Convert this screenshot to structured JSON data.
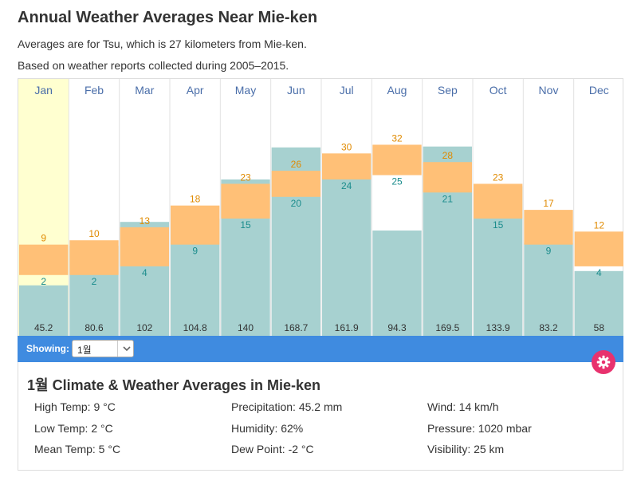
{
  "header": {
    "title": "Annual Weather Averages Near Mie-ken",
    "line1": "Averages are for Tsu, which is 27 kilometers from Mie-ken.",
    "line2": "Based on weather reports collected during 2005–2015."
  },
  "colors": {
    "temp_bar": "#ffc077",
    "precip_bar": "#a7d1d0",
    "highlight": "#ffffd0",
    "high_label": "#e08a00",
    "low_label": "#1a8c8c",
    "month_label": "#4a6ea9",
    "showbar": "#3f8be0",
    "gear": "#e8326e"
  },
  "chart_data": {
    "type": "bar",
    "title": "Annual Weather Averages Near Mie-ken",
    "categories": [
      "Jan",
      "Feb",
      "Mar",
      "Apr",
      "May",
      "Jun",
      "Jul",
      "Aug",
      "Sep",
      "Oct",
      "Nov",
      "Dec"
    ],
    "series": [
      {
        "name": "High Temp (°C)",
        "values": [
          9,
          10,
          13,
          18,
          23,
          26,
          30,
          32,
          28,
          23,
          17,
          12
        ]
      },
      {
        "name": "Low Temp (°C)",
        "values": [
          2,
          2,
          4,
          9,
          15,
          20,
          24,
          25,
          21,
          15,
          9,
          4
        ]
      },
      {
        "name": "Precipitation (mm)",
        "values": [
          45.2,
          80.6,
          102,
          104.8,
          140,
          168.7,
          161.9,
          94.3,
          169.5,
          133.9,
          83.2,
          58
        ]
      }
    ],
    "precip_labels": [
      "45.2",
      "80.6",
      "102",
      "104.8",
      "140",
      "168.7",
      "161.9",
      "94.3",
      "169.5",
      "133.9",
      "83.2",
      "58"
    ],
    "selected_month": "Jan",
    "temp_range": [
      -12,
      42
    ],
    "precip_max": 210
  },
  "selector": {
    "label": "Showing:",
    "value": "1월"
  },
  "panel": {
    "title": "1월 Climate & Weather Averages in Mie-ken",
    "stats": {
      "high": "High Temp: 9 °C",
      "low": "Low Temp: 2 °C",
      "mean": "Mean Temp: 5 °C",
      "precip": "Precipitation: 45.2 mm",
      "humidity": "Humidity: 62%",
      "dew": "Dew Point: -2 °C",
      "wind": "Wind: 14 km/h",
      "pressure": "Pressure: 1020 mbar",
      "visibility": "Visibility: 25 km"
    }
  },
  "icons": {
    "settings": "gear-icon",
    "dropdown": "chevron-down-icon"
  }
}
